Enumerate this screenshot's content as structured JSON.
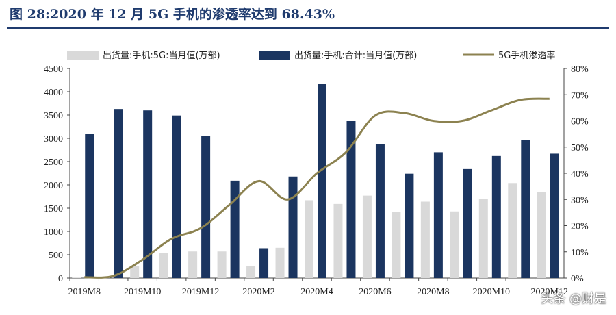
{
  "title": "图 28:2020 年 12 月 5G 手机的渗透率达到 68.43%",
  "watermark": "头条 @财是",
  "chart_data": {
    "type": "bar",
    "categories": [
      "2019M8",
      "2019M9",
      "2019M10",
      "2019M11",
      "2019M12",
      "2020M1",
      "2020M2",
      "2020M3",
      "2020M4",
      "2020M5",
      "2020M6",
      "2020M7",
      "2020M8",
      "2020M9",
      "2020M10",
      "2020M11",
      "2020M12"
    ],
    "x_tick_labels": [
      "2019M8",
      "2019M10",
      "2019M12",
      "2020M2",
      "2020M4",
      "2020M6",
      "2020M8",
      "2020M10",
      "2020M12"
    ],
    "series": [
      {
        "name": "出货量:手机:5G:当月值(万部)",
        "type": "bar",
        "axis": "left",
        "color": "#d9d9d9",
        "values": [
          10,
          30,
          250,
          530,
          570,
          570,
          260,
          650,
          1670,
          1590,
          1770,
          1420,
          1640,
          1430,
          1700,
          2040,
          1840
        ]
      },
      {
        "name": "出货量:手机:合计:当月值(万部)",
        "type": "bar",
        "axis": "left",
        "color": "#1b3560",
        "values": [
          3100,
          3630,
          3600,
          3490,
          3050,
          2090,
          640,
          2180,
          4170,
          3380,
          2870,
          2240,
          2700,
          2340,
          2620,
          2960,
          2670
        ]
      },
      {
        "name": "5G手机渗透率",
        "type": "line",
        "axis": "right",
        "color": "#8c8250",
        "values": [
          0.3,
          0.8,
          7,
          15,
          19,
          28,
          37,
          30,
          40,
          48,
          62,
          63,
          60,
          60,
          64,
          68,
          68.43
        ]
      }
    ],
    "y_left": {
      "ylim": [
        0,
        4500
      ],
      "ticks": [
        "0",
        "500",
        "1000",
        "1500",
        "2000",
        "2500",
        "3000",
        "3500",
        "4000",
        "4500"
      ]
    },
    "y_right": {
      "ylim": [
        0,
        80
      ],
      "ticks": [
        "0%",
        "10%",
        "20%",
        "30%",
        "40%",
        "50%",
        "60%",
        "70%",
        "80%"
      ]
    },
    "legend_position": "top",
    "grid": false
  }
}
